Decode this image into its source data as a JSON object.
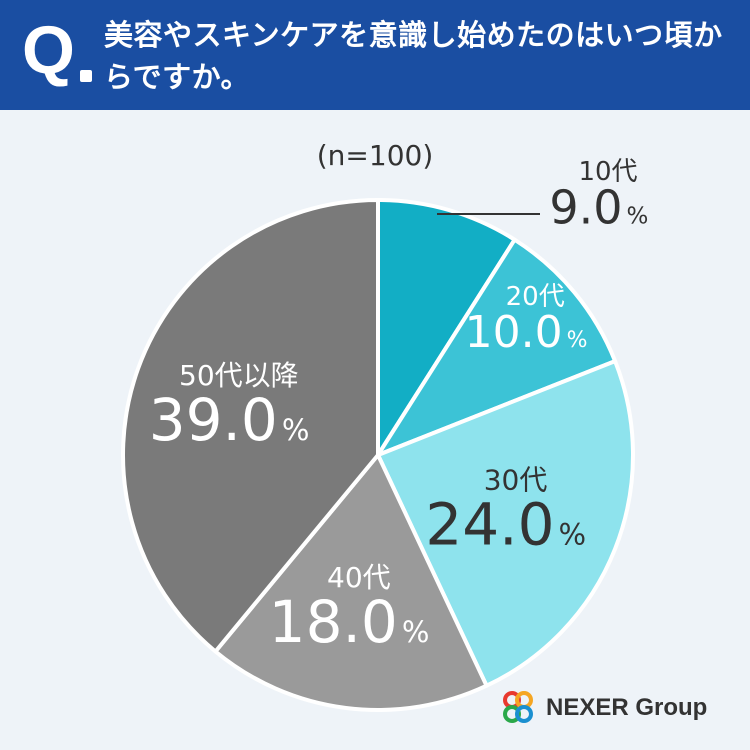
{
  "header": {
    "q_label": "Q",
    "question": "美容やスキンケアを意識し始めたのはいつ頃からですか。"
  },
  "chart_data": {
    "type": "pie",
    "sample_note": "(n=100)",
    "start": "top",
    "direction": "clockwise",
    "slices": [
      {
        "label": "10代",
        "value": 9.0,
        "display": "9.0",
        "color": "#12aec5",
        "label_position": "outside-callout",
        "text_color": "#333333"
      },
      {
        "label": "20代",
        "value": 10.0,
        "display": "10.0",
        "color": "#3cc3d6",
        "label_position": "inside",
        "text_color": "#ffffff"
      },
      {
        "label": "30代",
        "value": 24.0,
        "display": "24.0",
        "color": "#8ee3ed",
        "label_position": "inside",
        "text_color": "#333333"
      },
      {
        "label": "40代",
        "value": 18.0,
        "display": "18.0",
        "color": "#9a9a9a",
        "label_position": "inside",
        "text_color": "#ffffff"
      },
      {
        "label": "50代以降",
        "value": 39.0,
        "display": "39.0",
        "color": "#7a7a7a",
        "label_position": "inside",
        "text_color": "#ffffff"
      }
    ],
    "unit": "%"
  },
  "brand": {
    "name": "NEXER Group",
    "logo_colors": [
      "#e8392e",
      "#f5a623",
      "#2aa84a",
      "#1a8fd0"
    ]
  }
}
